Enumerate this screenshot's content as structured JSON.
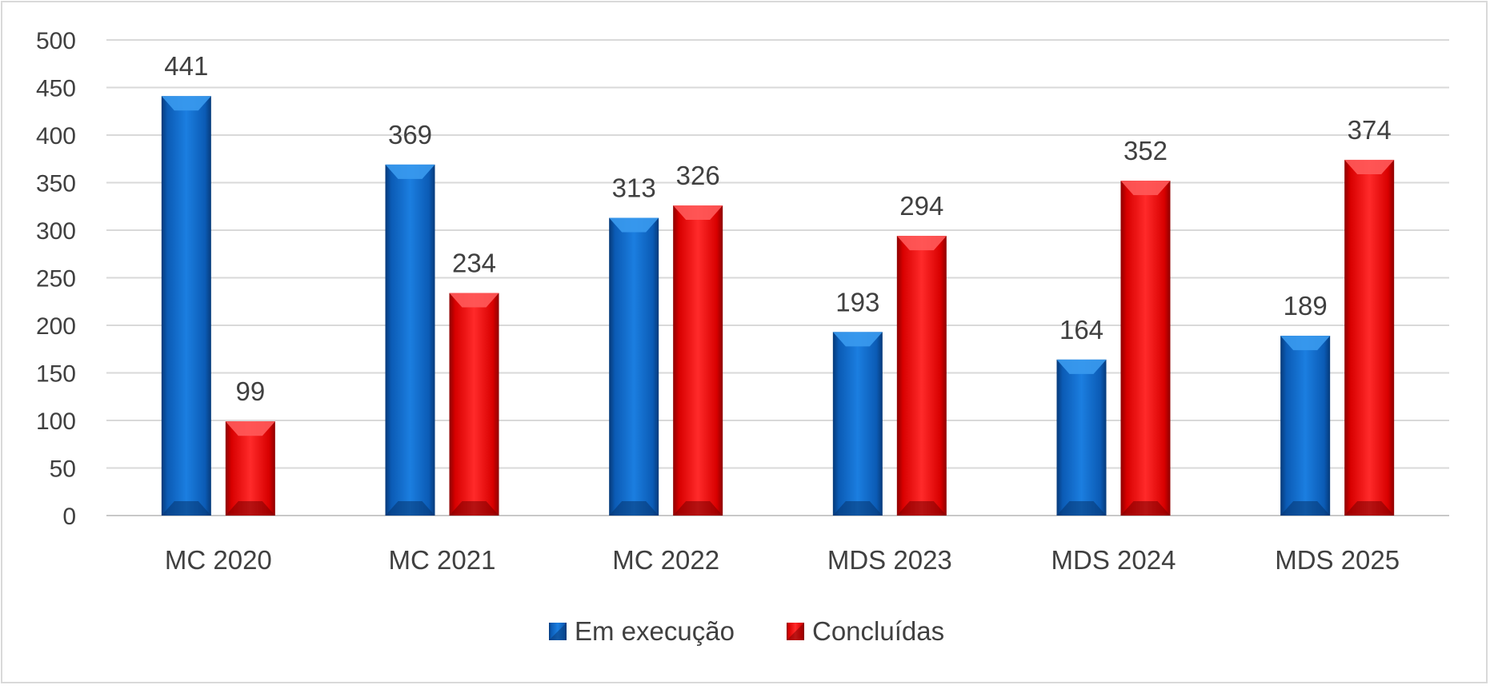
{
  "chart_data": {
    "type": "bar",
    "title": "",
    "xlabel": "",
    "ylabel": "",
    "categories": [
      "MC 2020",
      "MC 2021",
      "MC 2022",
      "MDS 2023",
      "MDS 2024",
      "MDS 2025"
    ],
    "series": [
      {
        "name": "Em execução",
        "color": "#0a63c4",
        "values": [
          441,
          369,
          313,
          193,
          164,
          189
        ]
      },
      {
        "name": "Concluídas",
        "color": "#e60000",
        "values": [
          99,
          234,
          326,
          294,
          352,
          374
        ]
      }
    ],
    "ylim": [
      0,
      500
    ],
    "yticks": [
      "0",
      "50",
      "100",
      "150",
      "200",
      "250",
      "300",
      "350",
      "400",
      "450",
      "500"
    ],
    "grid": true,
    "legend": "bottom"
  }
}
